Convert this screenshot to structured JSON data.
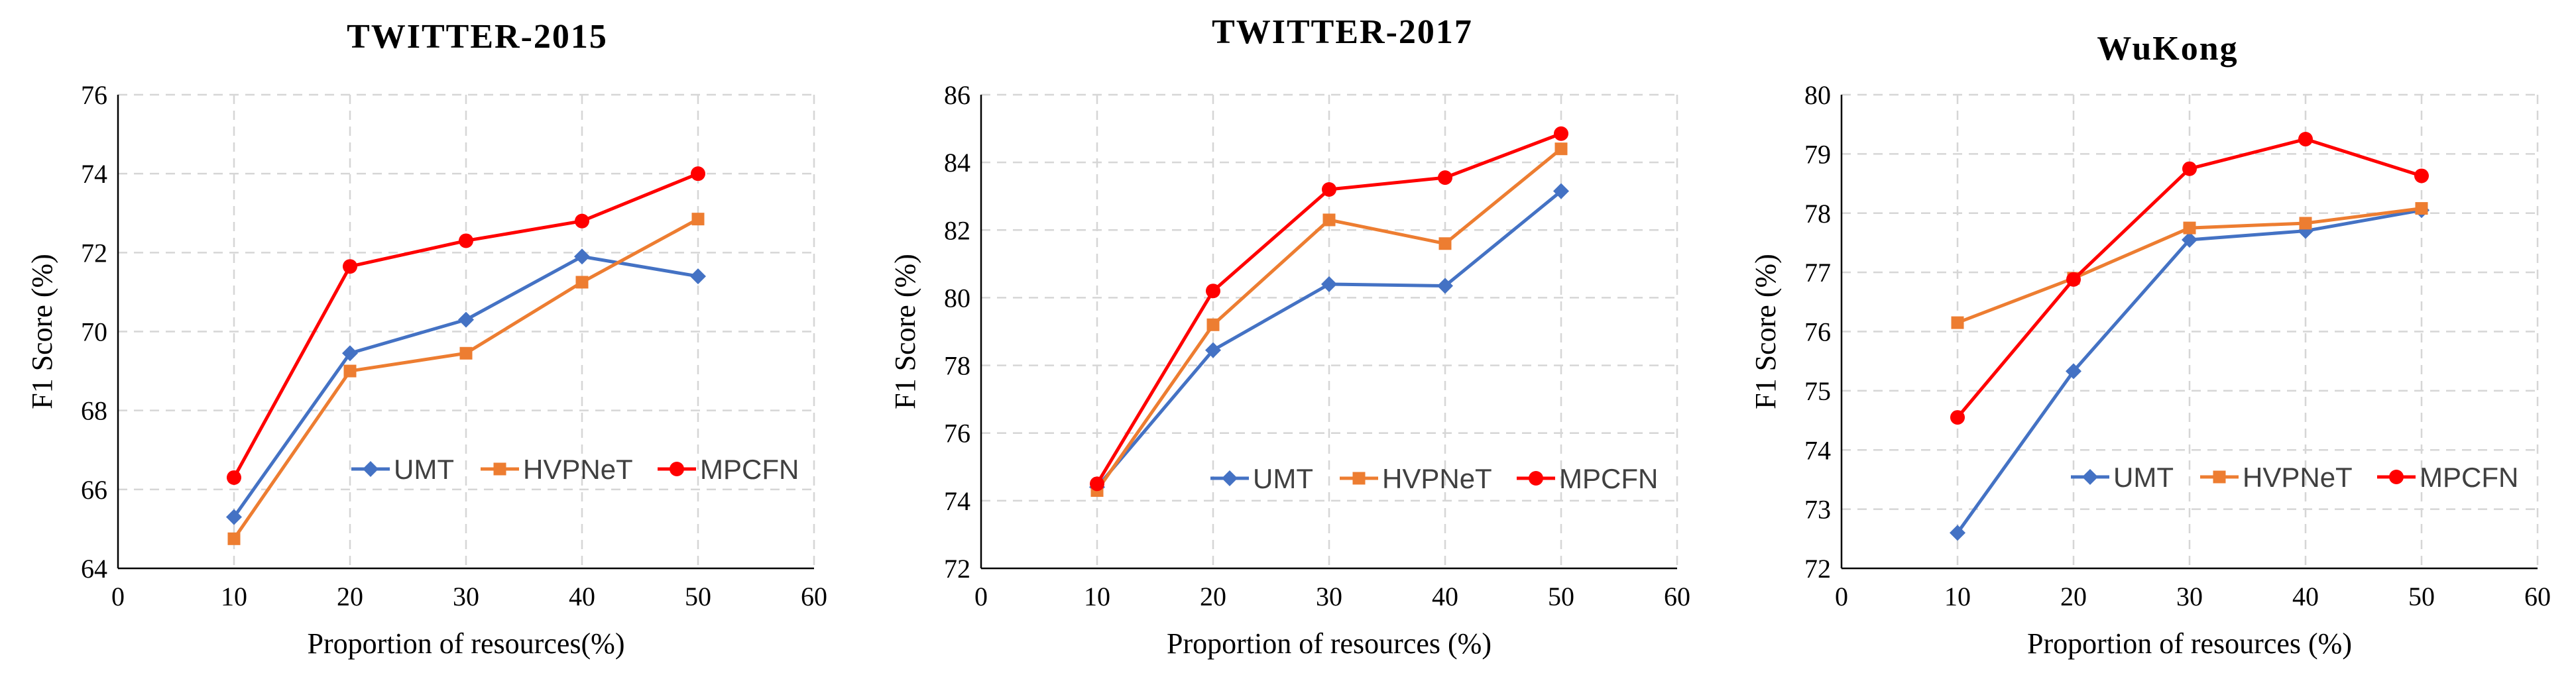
{
  "chart_data": [
    {
      "type": "line",
      "title": "TWITTER-2015",
      "xlabel": "Proportion of resources(%)",
      "ylabel": "F1 Score (%)",
      "xlim": [
        0,
        60
      ],
      "ylim": [
        64,
        76
      ],
      "xticks": [
        0,
        10,
        20,
        30,
        40,
        50,
        60
      ],
      "yticks": [
        64,
        66,
        68,
        70,
        72,
        74,
        76
      ],
      "grid": true,
      "legend": "lower-right",
      "x": [
        10,
        20,
        30,
        40,
        50
      ],
      "series": [
        {
          "name": "UMT",
          "color": "#4472C4",
          "marker": "diamond",
          "values": [
            65.3,
            69.45,
            70.3,
            71.9,
            71.4
          ]
        },
        {
          "name": "HVPNeT",
          "color": "#ED7D31",
          "marker": "square",
          "values": [
            64.75,
            69.0,
            69.45,
            71.25,
            72.85
          ]
        },
        {
          "name": "MPCFN",
          "color": "#FF0000",
          "marker": "circle",
          "values": [
            66.3,
            71.65,
            72.3,
            72.8,
            74.0
          ]
        }
      ]
    },
    {
      "type": "line",
      "title": "TWITTER-2017",
      "xlabel": "Proportion of resources  (%)",
      "ylabel": "F1 Score (%)",
      "xlim": [
        0,
        60
      ],
      "ylim": [
        72,
        86
      ],
      "xticks": [
        0,
        10,
        20,
        30,
        40,
        50,
        60
      ],
      "yticks": [
        72,
        74,
        76,
        78,
        80,
        82,
        84,
        86
      ],
      "grid": true,
      "legend": "lower-right",
      "x": [
        10,
        20,
        30,
        40,
        50
      ],
      "series": [
        {
          "name": "UMT",
          "color": "#4472C4",
          "marker": "diamond",
          "values": [
            74.4,
            78.45,
            80.4,
            80.35,
            83.15
          ]
        },
        {
          "name": "HVPNeT",
          "color": "#ED7D31",
          "marker": "square",
          "values": [
            74.3,
            79.2,
            82.3,
            81.6,
            84.4
          ]
        },
        {
          "name": "MPCFN",
          "color": "#FF0000",
          "marker": "circle",
          "values": [
            74.5,
            80.2,
            83.2,
            83.55,
            84.85
          ]
        }
      ]
    },
    {
      "type": "line",
      "title": "WuKong",
      "xlabel": "Proportion of resources  (%)",
      "ylabel": "F1 Score (%)",
      "xlim": [
        0,
        60
      ],
      "ylim": [
        72,
        80
      ],
      "xticks": [
        0,
        10,
        20,
        30,
        40,
        50,
        60
      ],
      "yticks": [
        72,
        73,
        74,
        75,
        76,
        77,
        78,
        79,
        80
      ],
      "grid": true,
      "legend": "lower-right",
      "x": [
        10,
        20,
        30,
        40,
        50
      ],
      "series": [
        {
          "name": "UMT",
          "color": "#4472C4",
          "marker": "diamond",
          "values": [
            72.6,
            75.33,
            77.55,
            77.7,
            78.05
          ]
        },
        {
          "name": "HVPNeT",
          "color": "#ED7D31",
          "marker": "square",
          "values": [
            76.15,
            76.9,
            77.75,
            77.83,
            78.08
          ]
        },
        {
          "name": "MPCFN",
          "color": "#FF0000",
          "marker": "circle",
          "values": [
            74.55,
            76.88,
            78.75,
            79.25,
            78.63
          ]
        }
      ]
    }
  ]
}
